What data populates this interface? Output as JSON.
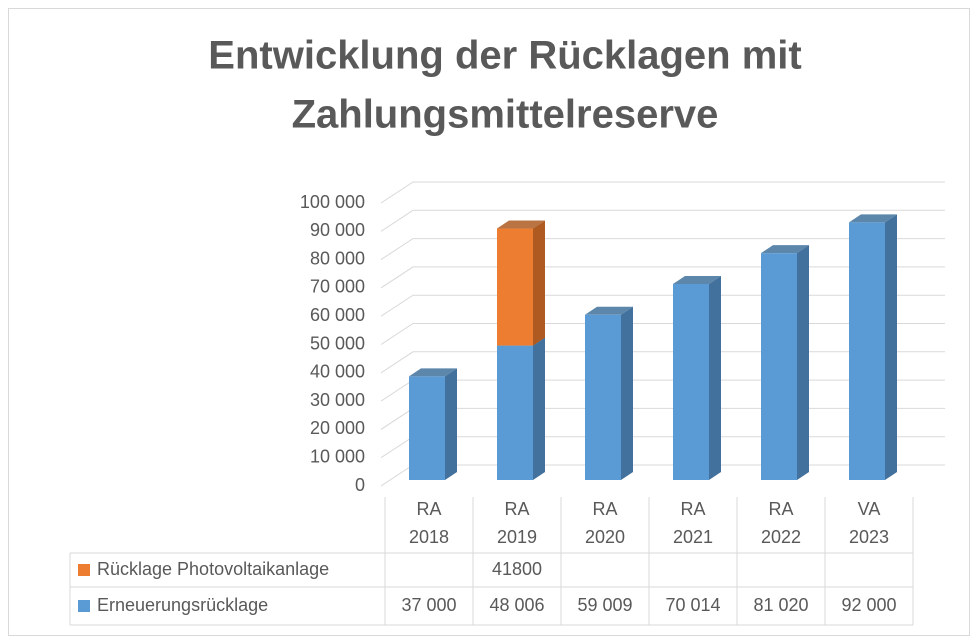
{
  "chart_data": {
    "type": "bar",
    "stacked": true,
    "title": [
      "Entwicklung der Rücklagen mit",
      "Zahlungsmittelreserve"
    ],
    "categories": [
      [
        "RA",
        "2018"
      ],
      [
        "RA",
        "2019"
      ],
      [
        "RA",
        "2020"
      ],
      [
        "RA",
        "2021"
      ],
      [
        "RA",
        "2022"
      ],
      [
        "VA",
        "2023"
      ]
    ],
    "series": [
      {
        "name": "Erneuerungsrücklage",
        "color": "#5b9bd5",
        "side_color": "#41719c",
        "values": [
          37000,
          48006,
          59009,
          70014,
          81020,
          92000
        ],
        "value_labels": [
          "37 000",
          "48 006",
          "59 009",
          "70 014",
          "81 020",
          "92 000"
        ]
      },
      {
        "name": "Rücklage Photovoltaikanlage",
        "color": "#ed7d31",
        "side_color": "#ae5a21",
        "values": [
          null,
          41800,
          null,
          null,
          null,
          null
        ],
        "value_labels": [
          null,
          "41800",
          null,
          null,
          null,
          null
        ]
      }
    ],
    "ylim": [
      0,
      100000
    ],
    "yticks": [
      0,
      {
        "value": 10000,
        "label": "10 000"
      },
      {
        "value": 20000,
        "label": "20 000"
      },
      {
        "value": 30000,
        "label": "30 000"
      },
      {
        "value": 40000,
        "label": "40 000"
      },
      {
        "value": 50000,
        "label": "50 000"
      },
      {
        "value": 60000,
        "label": "60 000"
      },
      {
        "value": 70000,
        "label": "70 000"
      },
      {
        "value": 80000,
        "label": "80 000"
      },
      {
        "value": 90000,
        "label": "90 000"
      },
      {
        "value": 100000,
        "label": "100 000"
      }
    ],
    "grid": true,
    "data_table": true
  }
}
